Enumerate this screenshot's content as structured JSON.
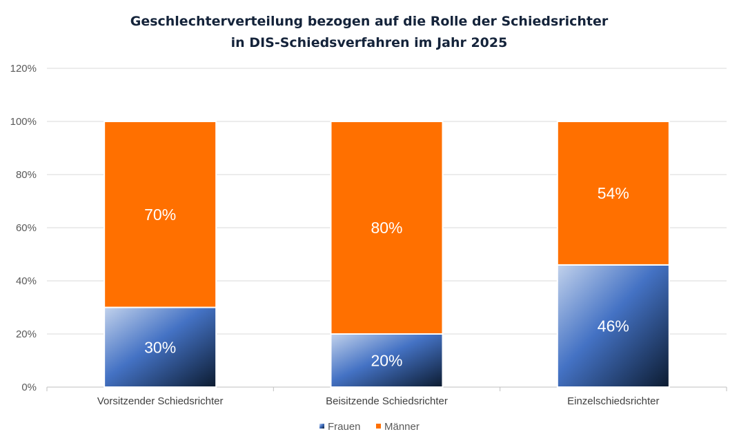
{
  "chart_data": {
    "type": "bar",
    "stacked": true,
    "title": [
      "Geschlechterverteilung bezogen auf die Rolle der Schiedsrichter",
      "in DIS-Schiedsverfahren im Jahr 2025"
    ],
    "categories": [
      "Vorsitzender Schiedsrichter",
      "Beisitzende Schiedsrichter",
      "Einzelschiedsrichter"
    ],
    "series": [
      {
        "name": "Frauen",
        "values": [
          30,
          20,
          46
        ],
        "labels": [
          "30%",
          "20%",
          "46%"
        ],
        "color": "#4472c4"
      },
      {
        "name": "Männer",
        "values": [
          70,
          80,
          54
        ],
        "labels": [
          "70%",
          "80%",
          "54%"
        ],
        "color": "#ff7000"
      }
    ],
    "ylim": [
      0,
      120
    ],
    "yticks": [
      "0%",
      "20%",
      "40%",
      "60%",
      "80%",
      "100%",
      "120%"
    ],
    "grid": true,
    "legend": "bottom"
  }
}
